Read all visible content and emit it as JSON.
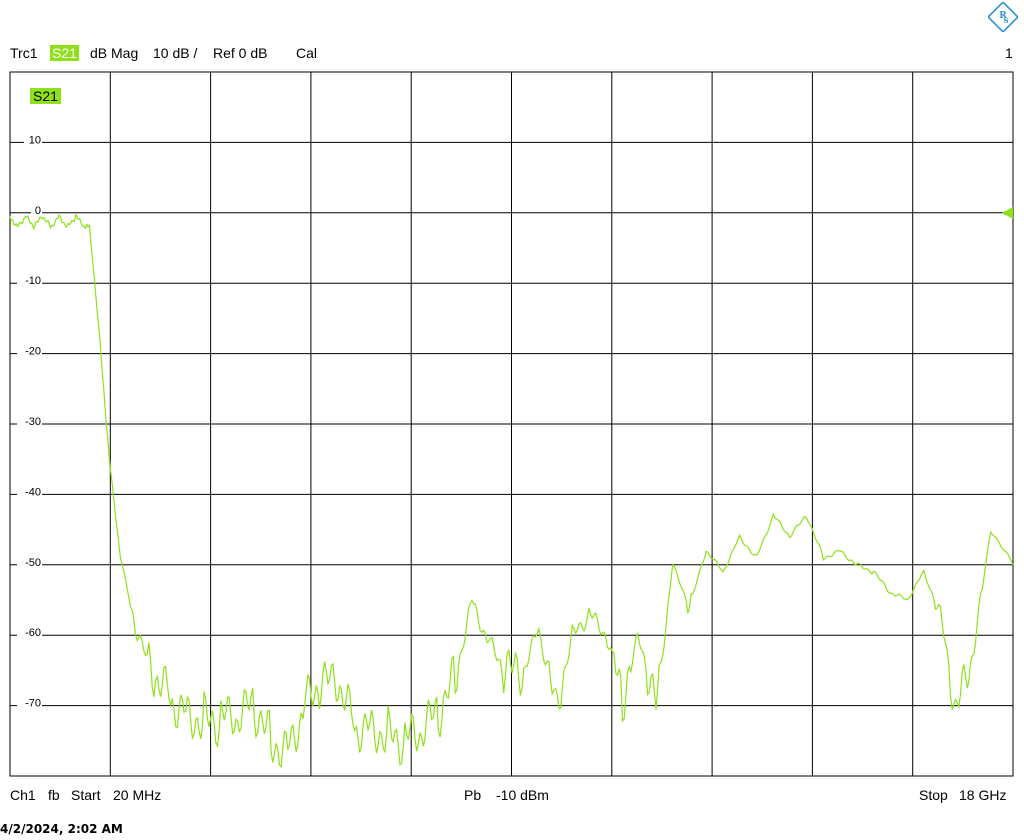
{
  "header": {
    "trace": "Trc1",
    "measurement": "S21",
    "format": "dB Mag",
    "scale": "10 dB /",
    "ref": "Ref 0 dB",
    "cal": "Cal",
    "channel_index": "1"
  },
  "trace_label": "S21",
  "footer": {
    "channel": "Ch1",
    "mode": "fb",
    "start_label": "Start",
    "start_value": "20 MHz",
    "power_label": "Pb",
    "power_value": "-10 dBm",
    "stop_label": "Stop",
    "stop_value": "18 GHz"
  },
  "timestamp": "4/2/2024, 2:02 AM",
  "colors": {
    "trace": "#8fe11a",
    "grid": "#000000",
    "background": "#ffffff"
  },
  "chart_data": {
    "type": "line",
    "title": "",
    "xlabel": "",
    "ylabel": "",
    "xlim": [
      0.02,
      18
    ],
    "ylim": [
      -80,
      20
    ],
    "x_unit": "GHz",
    "y_unit": "dB",
    "y_ticks": [
      10,
      0,
      -10,
      -20,
      -30,
      -40,
      -50,
      -60,
      -70
    ],
    "x_divisions": 10,
    "y_divisions": 10,
    "grid": true,
    "reference_level": 0,
    "series": [
      {
        "name": "S21",
        "x": [
          0.02,
          0.15,
          0.3,
          0.45,
          0.6,
          0.75,
          0.9,
          1.05,
          1.2,
          1.35,
          1.45,
          1.65,
          1.8,
          2.0,
          2.3,
          2.6,
          2.9,
          3.2,
          3.5,
          3.8,
          4.1,
          4.4,
          4.7,
          5.0,
          5.3,
          5.6,
          5.9,
          6.2,
          6.5,
          6.8,
          7.1,
          7.4,
          7.7,
          8.0,
          8.3,
          8.6,
          8.9,
          9.2,
          9.5,
          9.8,
          10.1,
          10.4,
          10.7,
          11.0,
          11.3,
          11.6,
          11.9,
          12.2,
          12.5,
          12.8,
          13.1,
          13.4,
          13.7,
          14.0,
          14.3,
          14.6,
          14.9,
          15.2,
          15.5,
          15.8,
          16.1,
          16.4,
          16.7,
          17.0,
          17.3,
          17.6,
          18.0
        ],
        "y": [
          -0.5,
          -2,
          -0.5,
          -2,
          -0.5,
          -2,
          -0.5,
          -2,
          -0.5,
          -2,
          -2,
          -20,
          -35,
          -49,
          -60,
          -66,
          -69,
          -71,
          -72,
          -72,
          -72,
          -70,
          -75,
          -76,
          -70,
          -67,
          -67,
          -73,
          -73,
          -74,
          -75,
          -74,
          -71,
          -66,
          -55,
          -61,
          -65,
          -66,
          -59,
          -70,
          -60,
          -57,
          -60,
          -69,
          -60,
          -70,
          -50,
          -56,
          -48,
          -51,
          -46,
          -49,
          -43,
          -46,
          -43,
          -49,
          -48,
          -50,
          -51,
          -54,
          -55,
          -51,
          -57,
          -71,
          -62,
          -45,
          -50
        ]
      }
    ]
  }
}
